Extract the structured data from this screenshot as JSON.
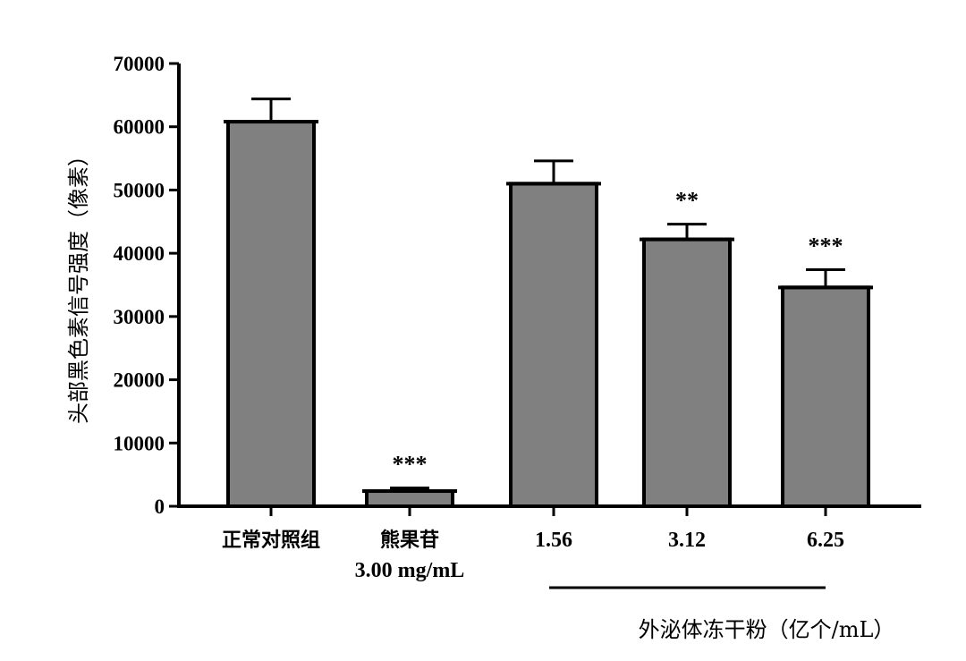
{
  "chart_data": {
    "type": "bar",
    "ylabel": "头部黑色素信号强度（像素）",
    "ylim": [
      0,
      70000
    ],
    "yticks": [
      "0",
      "10000",
      "20000",
      "30000",
      "40000",
      "50000",
      "60000",
      "70000"
    ],
    "ytick_values": [
      0,
      10000,
      20000,
      30000,
      40000,
      50000,
      60000,
      70000
    ],
    "categories": [
      {
        "line1": "正常对照组",
        "line2": ""
      },
      {
        "line1": "熊果苷",
        "line2": "3.00 mg/mL"
      },
      {
        "line1": "1.56",
        "line2": ""
      },
      {
        "line1": "3.12",
        "line2": ""
      },
      {
        "line1": "6.25",
        "line2": ""
      }
    ],
    "values": [
      60800,
      2400,
      51000,
      42200,
      34600
    ],
    "errors": [
      3600,
      500,
      3600,
      2400,
      2800
    ],
    "significance": [
      "",
      "***",
      "",
      "**",
      "***"
    ],
    "group_label": "外泌体冻干粉（亿个/mL）",
    "grid": false,
    "colors": {
      "bar": "#808080",
      "edge": "#000000"
    }
  }
}
